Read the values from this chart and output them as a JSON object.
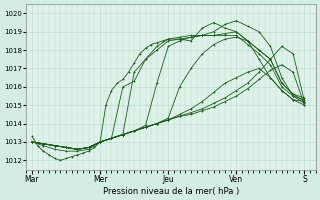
{
  "background_color": "#d4ede4",
  "grid_color": "#b8d8cc",
  "plot_bg": "#dff2ea",
  "line_color": "#1a5c1a",
  "xlabel": "Pression niveau de la mer( hPa )",
  "ylim": [
    1011.5,
    1020.5
  ],
  "yticks": [
    1012,
    1013,
    1014,
    1015,
    1016,
    1017,
    1018,
    1019,
    1020
  ],
  "xtick_labels": [
    "Mar",
    "Mer",
    "Jeu",
    "Ven",
    "S"
  ],
  "xtick_positions": [
    0,
    24,
    48,
    72,
    96
  ],
  "xlim": [
    -2,
    100
  ],
  "series": [
    {
      "x": [
        0,
        4,
        8,
        12,
        16,
        20,
        24,
        26,
        28,
        30,
        32,
        34,
        36,
        38,
        40,
        42,
        44,
        46,
        48,
        52,
        56,
        60,
        64,
        68,
        72,
        76,
        80,
        84,
        88,
        92,
        96
      ],
      "y": [
        1013.0,
        1012.8,
        1012.6,
        1012.5,
        1012.5,
        1012.6,
        1013.0,
        1015.0,
        1015.8,
        1016.2,
        1016.4,
        1016.8,
        1017.3,
        1017.8,
        1018.1,
        1018.3,
        1018.4,
        1018.5,
        1018.6,
        1018.6,
        1018.5,
        1019.2,
        1019.5,
        1019.2,
        1019.0,
        1018.5,
        1017.5,
        1016.5,
        1015.8,
        1015.3,
        1015.0
      ]
    },
    {
      "x": [
        0,
        4,
        8,
        12,
        16,
        20,
        24,
        28,
        32,
        36,
        40,
        44,
        48,
        52,
        56,
        60,
        64,
        68,
        72,
        76,
        80,
        84,
        88,
        92,
        96
      ],
      "y": [
        1013.0,
        1012.9,
        1012.8,
        1012.7,
        1012.6,
        1012.7,
        1013.0,
        1013.2,
        1016.0,
        1016.3,
        1017.5,
        1018.0,
        1018.5,
        1018.6,
        1018.7,
        1018.8,
        1019.0,
        1019.4,
        1019.6,
        1019.3,
        1019.0,
        1018.2,
        1016.5,
        1015.5,
        1015.1
      ]
    },
    {
      "x": [
        0,
        4,
        8,
        12,
        16,
        20,
        24,
        28,
        32,
        36,
        40,
        44,
        48,
        52,
        56,
        60,
        64,
        68,
        72,
        76,
        80,
        84,
        88,
        92,
        96
      ],
      "y": [
        1013.0,
        1012.9,
        1012.8,
        1012.7,
        1012.6,
        1012.7,
        1013.0,
        1013.2,
        1013.4,
        1016.8,
        1017.5,
        1018.2,
        1018.6,
        1018.7,
        1018.8,
        1018.8,
        1018.8,
        1018.9,
        1019.0,
        1018.5,
        1018.0,
        1017.5,
        1016.2,
        1015.6,
        1015.2
      ]
    },
    {
      "x": [
        0,
        4,
        8,
        12,
        16,
        20,
        24,
        28,
        32,
        36,
        40,
        44,
        48,
        52,
        56,
        60,
        64,
        68,
        72,
        76,
        80,
        84,
        88,
        92,
        96
      ],
      "y": [
        1013.0,
        1012.9,
        1012.8,
        1012.7,
        1012.6,
        1012.7,
        1013.0,
        1013.2,
        1013.4,
        1013.6,
        1013.9,
        1016.2,
        1018.2,
        1018.5,
        1018.7,
        1018.8,
        1018.8,
        1018.8,
        1018.8,
        1018.3,
        1017.8,
        1017.2,
        1016.0,
        1015.5,
        1015.3
      ]
    },
    {
      "x": [
        0,
        4,
        8,
        12,
        16,
        20,
        24,
        28,
        32,
        36,
        40,
        44,
        48,
        52,
        56,
        60,
        64,
        68,
        72,
        76,
        80,
        84,
        88,
        92,
        96
      ],
      "y": [
        1013.0,
        1012.9,
        1012.8,
        1012.7,
        1012.6,
        1012.7,
        1013.0,
        1013.2,
        1013.4,
        1013.6,
        1013.8,
        1014.0,
        1014.3,
        1016.0,
        1017.0,
        1017.8,
        1018.3,
        1018.6,
        1018.7,
        1018.5,
        1018.0,
        1017.5,
        1016.2,
        1015.6,
        1015.4
      ]
    },
    {
      "x": [
        0,
        4,
        8,
        12,
        16,
        20,
        24,
        28,
        32,
        36,
        40,
        44,
        48,
        52,
        56,
        60,
        64,
        68,
        72,
        76,
        80,
        84,
        88,
        92,
        96
      ],
      "y": [
        1013.0,
        1012.9,
        1012.8,
        1012.7,
        1012.6,
        1012.7,
        1013.0,
        1013.2,
        1013.4,
        1013.6,
        1013.8,
        1014.0,
        1014.2,
        1014.4,
        1014.6,
        1014.8,
        1015.1,
        1015.4,
        1015.8,
        1016.2,
        1016.8,
        1017.5,
        1018.2,
        1017.8,
        1015.2
      ]
    },
    {
      "x": [
        0,
        4,
        8,
        12,
        16,
        20,
        24,
        28,
        32,
        36,
        40,
        44,
        48,
        52,
        56,
        60,
        64,
        68,
        72,
        76,
        80,
        84,
        88,
        92,
        96
      ],
      "y": [
        1013.0,
        1012.9,
        1012.8,
        1012.7,
        1012.6,
        1012.7,
        1013.0,
        1013.2,
        1013.4,
        1013.6,
        1013.8,
        1014.0,
        1014.2,
        1014.4,
        1014.5,
        1014.7,
        1014.9,
        1015.2,
        1015.5,
        1015.9,
        1016.4,
        1016.9,
        1017.2,
        1016.8,
        1015.0
      ]
    },
    {
      "x": [
        0,
        2,
        4,
        6,
        8,
        10,
        12,
        14,
        16,
        18,
        20,
        22,
        24,
        28,
        32,
        36,
        40,
        44,
        48,
        52,
        56,
        60,
        64,
        68,
        72,
        76,
        80,
        84,
        88,
        92,
        96
      ],
      "y": [
        1013.3,
        1012.8,
        1012.5,
        1012.3,
        1012.1,
        1012.0,
        1012.1,
        1012.2,
        1012.3,
        1012.4,
        1012.5,
        1012.7,
        1013.0,
        1013.2,
        1013.4,
        1013.6,
        1013.8,
        1014.0,
        1014.2,
        1014.5,
        1014.8,
        1015.2,
        1015.7,
        1016.2,
        1016.5,
        1016.8,
        1017.0,
        1016.5,
        1015.8,
        1015.3,
        1015.2
      ]
    }
  ]
}
